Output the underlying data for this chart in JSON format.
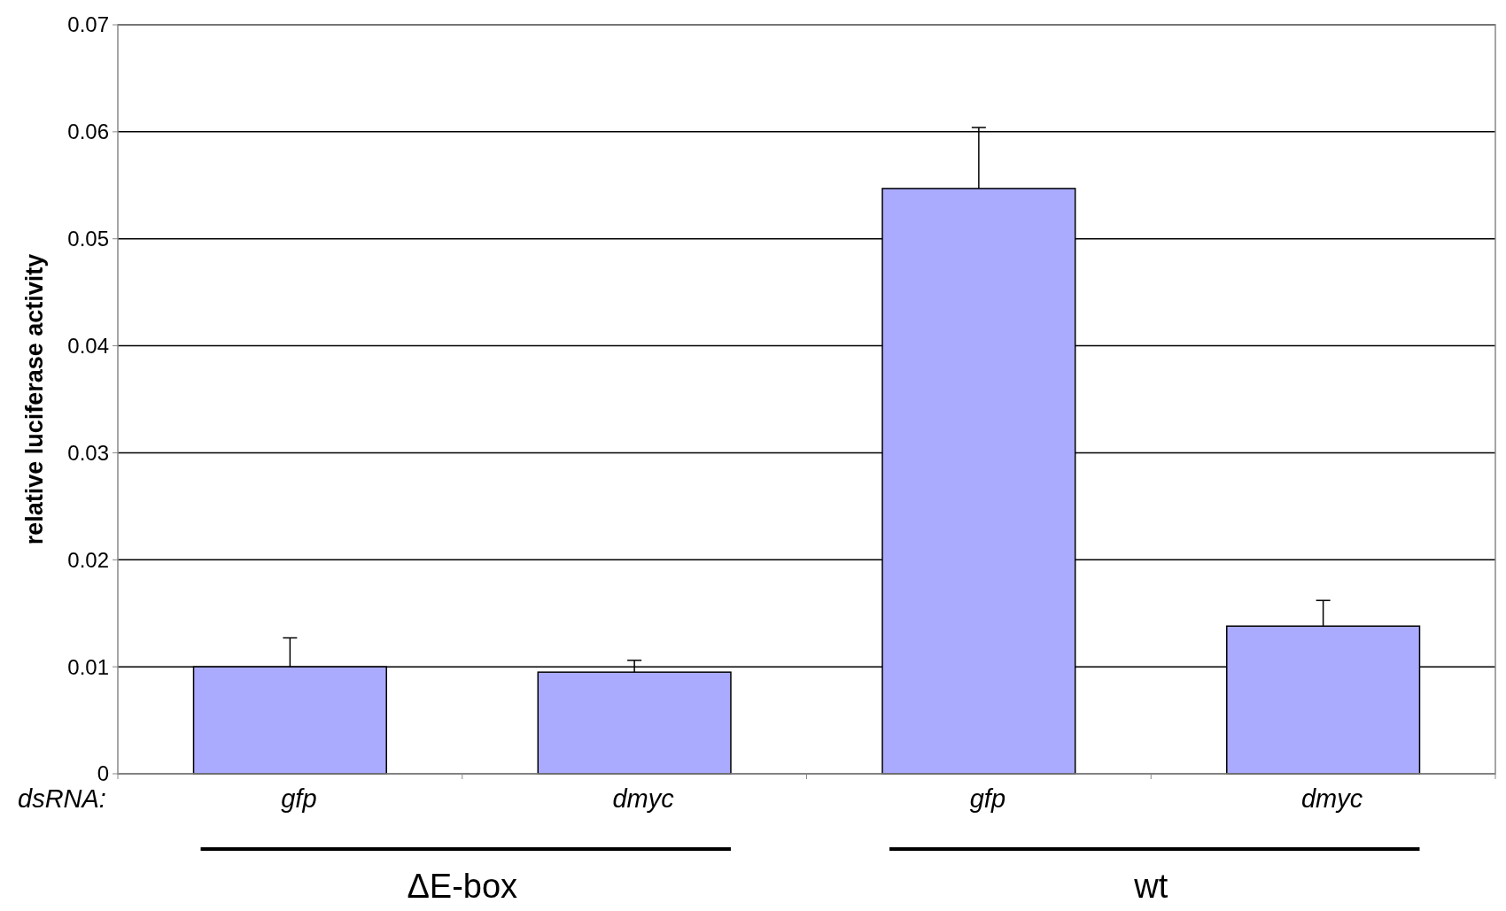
{
  "chart_data": {
    "type": "bar",
    "ylabel": "relative luciferase activity",
    "categories": [
      "gfp",
      "dmyc",
      "gfp",
      "dmyc"
    ],
    "values": [
      0.01,
      0.0095,
      0.0547,
      0.0138
    ],
    "errors": [
      [
        0.01,
        0.0127
      ],
      [
        0.0095,
        0.0106
      ],
      [
        0.0547,
        0.0604
      ],
      [
        0.0138,
        0.0162
      ]
    ],
    "color": "#aaaaff",
    "ylim": [
      0,
      0.07
    ],
    "yticks": [
      {
        "value": 0,
        "label": "0"
      },
      0.01,
      0.02,
      0.03,
      0.04,
      0.05,
      0.06,
      0.07
    ],
    "grid": "y",
    "annotations": [
      "dsRNA:",
      "ΔE-box",
      "wt"
    ]
  }
}
